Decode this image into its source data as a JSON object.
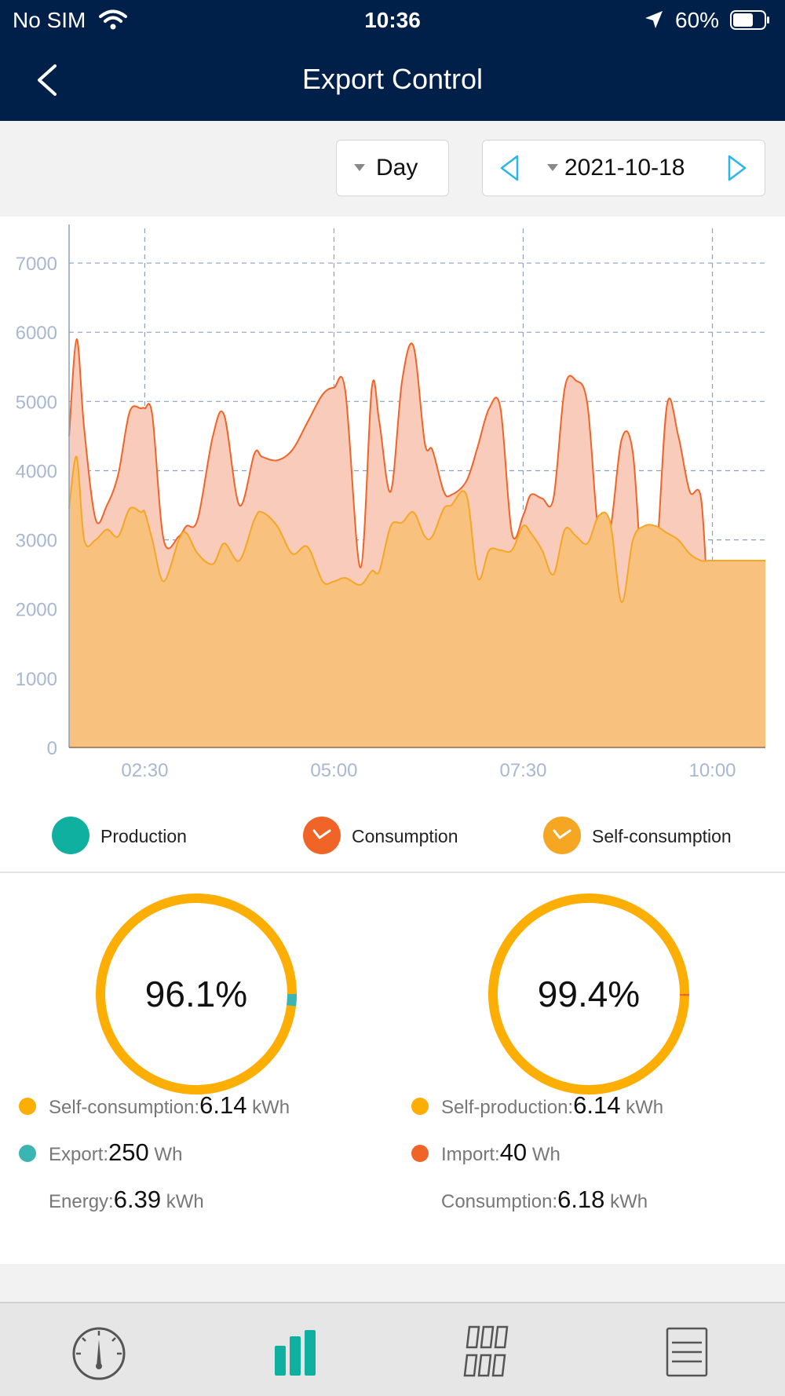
{
  "status_bar": {
    "carrier": "No SIM",
    "time": "10:36",
    "battery": "60%"
  },
  "nav": {
    "title": "Export Control"
  },
  "toolbar": {
    "period": "Day",
    "date": "2021-10-18"
  },
  "chart_data": {
    "type": "area",
    "title": "",
    "xlabel": "",
    "ylabel": "",
    "ylim": [
      0,
      7500
    ],
    "xlim": [
      1.5,
      10.7
    ],
    "yticks": [
      0,
      1000,
      2000,
      3000,
      4000,
      5000,
      6000,
      7000
    ],
    "xticks": [
      {
        "value": 2.5,
        "label": "02:30"
      },
      {
        "value": 5.0,
        "label": "05:00"
      },
      {
        "value": 7.5,
        "label": "07:30"
      },
      {
        "value": 10.0,
        "label": "10:00"
      }
    ],
    "x": [
      1.5,
      1.6,
      1.7,
      1.85,
      2.0,
      2.15,
      2.3,
      2.45,
      2.5,
      2.6,
      2.75,
      2.95,
      3.05,
      3.2,
      3.4,
      3.55,
      3.75,
      3.95,
      4.05,
      4.25,
      4.45,
      4.65,
      4.85,
      5.0,
      5.15,
      5.35,
      5.5,
      5.6,
      5.75,
      5.9,
      6.05,
      6.2,
      6.3,
      6.45,
      6.55,
      6.75,
      6.9,
      7.05,
      7.2,
      7.35,
      7.5,
      7.6,
      7.75,
      7.9,
      8.05,
      8.2,
      8.35,
      8.5,
      8.65,
      8.8,
      8.95,
      9.1,
      9.25,
      9.4,
      9.55,
      9.7,
      9.85,
      9.95,
      10.0,
      10.1,
      10.25,
      10.4,
      10.55,
      10.65,
      10.7
    ],
    "series": [
      {
        "name": "Consumption",
        "color": "#f06428",
        "values": [
          4500,
          5900,
          4600,
          3300,
          3500,
          3950,
          4850,
          4900,
          4900,
          4800,
          3000,
          3050,
          3200,
          3300,
          4500,
          4800,
          3500,
          4250,
          4200,
          4150,
          4300,
          4700,
          5100,
          5200,
          5150,
          2600,
          5200,
          4700,
          3700,
          5300,
          5800,
          4400,
          4300,
          3700,
          3650,
          3850,
          4350,
          4900,
          4900,
          3100,
          3350,
          3650,
          3600,
          3600,
          5200,
          5300,
          4950,
          3050,
          3150,
          4450,
          4250,
          2100,
          2600,
          4950,
          4500,
          3700,
          3600,
          1900,
          1700,
          1600,
          1600,
          1600,
          1600,
          1600,
          1600
        ],
        "series_marker": "check"
      },
      {
        "name": "Self-consumption",
        "color": "#f5a623",
        "values": [
          3450,
          4200,
          3000,
          3000,
          3150,
          3050,
          3450,
          3400,
          3400,
          3000,
          2400,
          3000,
          3100,
          2800,
          2650,
          2950,
          2700,
          3300,
          3400,
          3200,
          2800,
          2900,
          2400,
          2400,
          2450,
          2350,
          2550,
          2550,
          3200,
          3250,
          3400,
          3050,
          3050,
          3450,
          3500,
          3650,
          2450,
          2850,
          2850,
          2850,
          3200,
          3100,
          2850,
          2500,
          3150,
          3050,
          2950,
          3350,
          3250,
          2100,
          3000,
          3200,
          3200,
          3100,
          3000,
          2800,
          2700,
          2700,
          2700,
          2700,
          2700,
          2700,
          2700,
          2700,
          2700
        ],
        "series_marker": "check"
      }
    ],
    "legend": [
      {
        "name": "Production",
        "color": "#10b0a0",
        "checked": false
      },
      {
        "name": "Consumption",
        "color": "#f06428",
        "checked": true
      },
      {
        "name": "Self-consumption",
        "color": "#f5a623",
        "checked": true
      }
    ],
    "grid": true
  },
  "stats": {
    "left": {
      "percent": "96.1%",
      "fraction": 0.961,
      "main_color": "#fcae02",
      "rest_color": "#3ab5b1",
      "rows": [
        {
          "label": "Self-consumption:",
          "value": "6.14",
          "unit": " kWh",
          "color": "#fcae02"
        },
        {
          "label": "Export:",
          "value": "250",
          "unit": " Wh",
          "color": "#3ab5b1"
        },
        {
          "label": "Energy:",
          "value": "6.39",
          "unit": " kWh",
          "color": ""
        }
      ]
    },
    "right": {
      "percent": "99.4%",
      "fraction": 0.994,
      "main_color": "#fcae02",
      "rest_color": "#f06428",
      "rows": [
        {
          "label": "Self-production:",
          "value": "6.14",
          "unit": " kWh",
          "color": "#fcae02"
        },
        {
          "label": "Import:",
          "value": "40",
          "unit": " Wh",
          "color": "#f06428"
        },
        {
          "label": "Consumption:",
          "value": "6.18",
          "unit": " kWh",
          "color": ""
        }
      ]
    }
  },
  "tabs": [
    {
      "name": "gauge-icon",
      "active": false
    },
    {
      "name": "bar-chart-icon",
      "active": true
    },
    {
      "name": "grid-panels-icon",
      "active": false
    },
    {
      "name": "list-icon",
      "active": false
    }
  ]
}
